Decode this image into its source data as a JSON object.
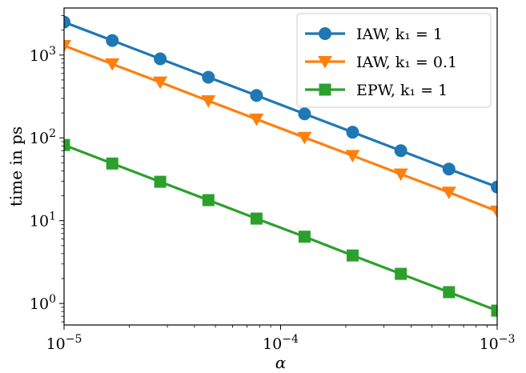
{
  "chart_data": {
    "type": "line",
    "xscale": "log",
    "yscale": "log",
    "xlim": [
      1e-05,
      0.001
    ],
    "ylim": [
      0.55,
      3700
    ],
    "xlabel": "α",
    "ylabel": "time in ps",
    "grid": false,
    "legend_position": "top-right",
    "x": [
      1e-05,
      1.67e-05,
      2.78e-05,
      4.64e-05,
      7.74e-05,
      0.000129,
      0.000215,
      0.000359,
      0.000599,
      0.001
    ],
    "series": [
      {
        "name": "IAW,  k₁ = 1",
        "color": "#1f77b4",
        "marker": "circle",
        "values": [
          2500,
          1500,
          900,
          540,
          325,
          195,
          117,
          70,
          42,
          25.5
        ]
      },
      {
        "name": "IAW,  k₁ = 0.1",
        "color": "#ff7f0e",
        "marker": "triangle-down",
        "values": [
          1300,
          780,
          470,
          280,
          168,
          101,
          61,
          36.5,
          22,
          13
        ]
      },
      {
        "name": "EPW,  k₁ = 1",
        "color": "#2ca02c",
        "marker": "square",
        "values": [
          82,
          49,
          29.5,
          17.7,
          10.6,
          6.4,
          3.8,
          2.28,
          1.37,
          0.82
        ]
      }
    ],
    "x_ticks": [
      {
        "value": 1e-05,
        "base": "10",
        "exp": "−5"
      },
      {
        "value": 0.0001,
        "base": "10",
        "exp": "−4"
      },
      {
        "value": 0.001,
        "base": "10",
        "exp": "−3"
      }
    ],
    "y_ticks": [
      {
        "value": 1,
        "base": "10",
        "exp": "0"
      },
      {
        "value": 10,
        "base": "10",
        "exp": "1"
      },
      {
        "value": 100,
        "base": "10",
        "exp": "2"
      },
      {
        "value": 1000,
        "base": "10",
        "exp": "3"
      }
    ]
  }
}
